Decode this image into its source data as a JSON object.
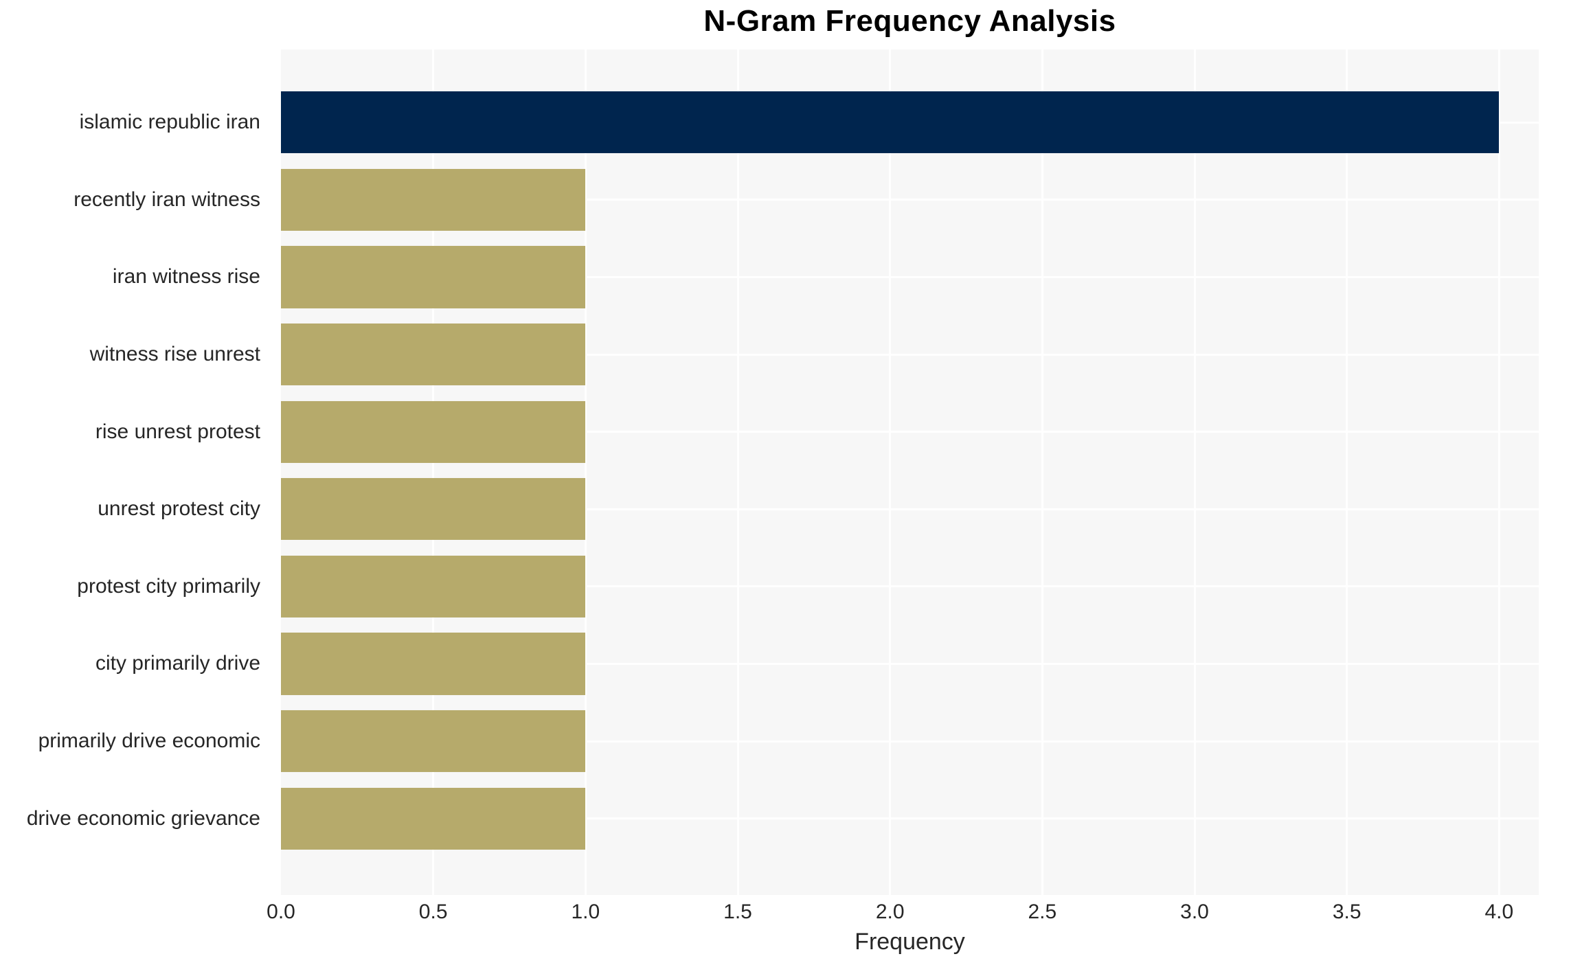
{
  "title": "N-Gram Frequency Analysis",
  "chart_data": {
    "type": "bar",
    "orientation": "horizontal",
    "title": "N-Gram Frequency Analysis",
    "xlabel": "Frequency",
    "ylabel": "",
    "categories": [
      "islamic republic iran",
      "recently iran witness",
      "iran witness rise",
      "witness rise unrest",
      "rise unrest protest",
      "unrest protest city",
      "protest city primarily",
      "city primarily drive",
      "primarily drive economic",
      "drive economic grievance"
    ],
    "values": [
      4,
      1,
      1,
      1,
      1,
      1,
      1,
      1,
      1,
      1
    ],
    "bar_colors": [
      "#00254E",
      "#B6AA6B",
      "#B6AA6B",
      "#B6AA6B",
      "#B6AA6B",
      "#B6AA6B",
      "#B6AA6B",
      "#B6AA6B",
      "#B6AA6B",
      "#B6AA6B"
    ],
    "xlim": [
      0,
      4.13
    ],
    "xticks": [
      0.5,
      1.0,
      1.5,
      2.0,
      2.5,
      3.0,
      3.5,
      4.0
    ],
    "xtick_labels": [
      "0.0",
      "0.5",
      "1.0",
      "1.5",
      "2.0",
      "2.5",
      "3.0",
      "3.5",
      "4.0"
    ],
    "xtick_values": [
      0.0,
      0.5,
      1.0,
      1.5,
      2.0,
      2.5,
      3.0,
      3.5,
      4.0
    ],
    "grid": true,
    "legend": false,
    "colors": {
      "plot_background": "#F7F7F7",
      "grid_line": "#FFFFFF",
      "highlight_bar": "#00254E",
      "default_bar": "#B6AA6B",
      "text": "#262626",
      "title_text": "#000000"
    }
  }
}
